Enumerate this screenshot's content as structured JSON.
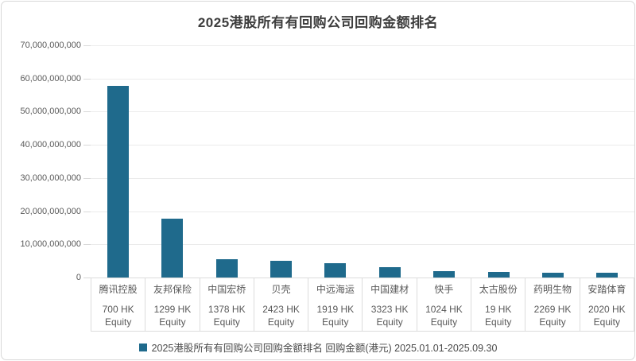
{
  "title": "2025港股所有有回购公司回购金额排名",
  "colors": {
    "bar": "#1f6a8c",
    "grid": "#ebebeb",
    "border": "#dcdcdc",
    "axis_text": "#595959",
    "title_text": "#3d3d3d"
  },
  "legend": {
    "marker_color": "#1f6a8c",
    "label": "2025港股所有有回购公司回购金额排名 回购金额(港元) 2025.01.01-2025.09.30"
  },
  "chart_data": {
    "type": "bar",
    "title": "2025港股所有有回购公司回购金额排名",
    "series_name": "回购金额(港元) 2025.01.01-2025.09.30",
    "categories": [
      {
        "name": "腾讯控股",
        "ticker": "700 HK",
        "suffix": "Equity"
      },
      {
        "name": "友邦保险",
        "ticker": "1299 HK",
        "suffix": "Equity"
      },
      {
        "name": "中国宏桥",
        "ticker": "1378 HK",
        "suffix": "Equity"
      },
      {
        "name": "贝壳",
        "ticker": "2423 HK",
        "suffix": "Equity"
      },
      {
        "name": "中远海运",
        "ticker": "1919 HK",
        "suffix": "Equity"
      },
      {
        "name": "中国建材",
        "ticker": "3323 HK",
        "suffix": "Equity"
      },
      {
        "name": "快手",
        "ticker": "1024 HK",
        "suffix": "Equity"
      },
      {
        "name": "太古股份",
        "ticker": "19 HK",
        "suffix": "Equity"
      },
      {
        "name": "药明生物",
        "ticker": "2269 HK",
        "suffix": "Equity"
      },
      {
        "name": "安踏体育",
        "ticker": "2020 HK",
        "suffix": "Equity"
      }
    ],
    "values": [
      57700000000,
      17800000000,
      5400000000,
      5100000000,
      4400000000,
      3200000000,
      2000000000,
      1600000000,
      1500000000,
      1500000000
    ],
    "xlabel": "",
    "ylabel": "",
    "ylim": [
      0,
      70000000000
    ],
    "ytick_interval": 10000000000,
    "grid": true,
    "legend_position": "bottom",
    "bar_color": "#1f6a8c"
  }
}
